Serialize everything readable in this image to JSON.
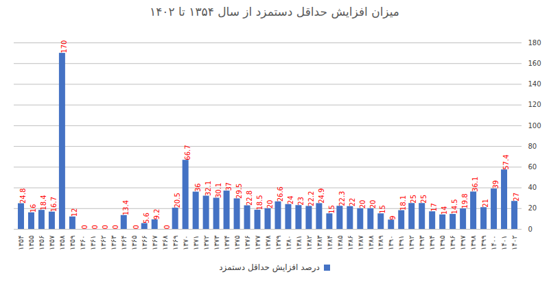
{
  "chart_data": {
    "type": "bar",
    "title": "میزان افزایش حداقل دستمزد از سال ۱۳۵۴ تا ۱۴۰۲",
    "categories": [
      "۱۳۵۴",
      "۱۳۵۵",
      "۱۳۵۶",
      "۱۳۵۷",
      "۱۳۵۸",
      "۱۳۵۹",
      "۱۳۶۰",
      "۱۳۶۱",
      "۱۳۶۲",
      "۱۳۶۳",
      "۱۳۶۴",
      "۱۳۶۵",
      "۱۳۶۶",
      "۱۳۶۷",
      "۱۳۶۸",
      "۱۳۶۹",
      "۱۳۷۰",
      "۱۳۷۱",
      "۱۳۷۲",
      "۱۳۷۳",
      "۱۳۷۴",
      "۱۳۷۵",
      "۱۳۷۶",
      "۱۳۷۷",
      "۱۳۷۸",
      "۱۳۷۹",
      "۱۳۸۰",
      "۱۳۸۱",
      "۱۳۸۲",
      "۱۳۸۳",
      "۱۳۸۴",
      "۱۳۸۵",
      "۱۳۸۶",
      "۱۳۸۷",
      "۱۳۸۸",
      "۱۳۸۹",
      "۱۳۹۰",
      "۱۳۹۱",
      "۱۳۹۲",
      "۱۳۹۳",
      "۱۳۹۴",
      "۱۳۹۵",
      "۱۳۹۶",
      "۱۳۹۷",
      "۱۳۹۸",
      "۱۳۹۹",
      "۱۴۰۰",
      "۱۴۰۱",
      "۱۴۰۲"
    ],
    "series": [
      {
        "name": "درصد افزایش حداقل دستمزد",
        "color": "#4472c4",
        "values": [
          24.8,
          16,
          18.4,
          16.7,
          170,
          12,
          0,
          0,
          0,
          0,
          13.4,
          0,
          5.6,
          9.2,
          0,
          20.5,
          66.7,
          36,
          32.1,
          30.1,
          37,
          29.5,
          22.8,
          18.5,
          20,
          26.6,
          24,
          23,
          22.2,
          24.9,
          15,
          22.3,
          22,
          20,
          20,
          15,
          9,
          18.1,
          25,
          25,
          17,
          14,
          14.5,
          19.8,
          36.1,
          21,
          39,
          57.4,
          27
        ]
      }
    ],
    "ylim": [
      0,
      180
    ],
    "yticks": [
      0,
      20,
      40,
      60,
      80,
      100,
      120,
      140,
      160,
      180
    ],
    "grid": true,
    "data_labels": true,
    "legend": "bottom"
  }
}
